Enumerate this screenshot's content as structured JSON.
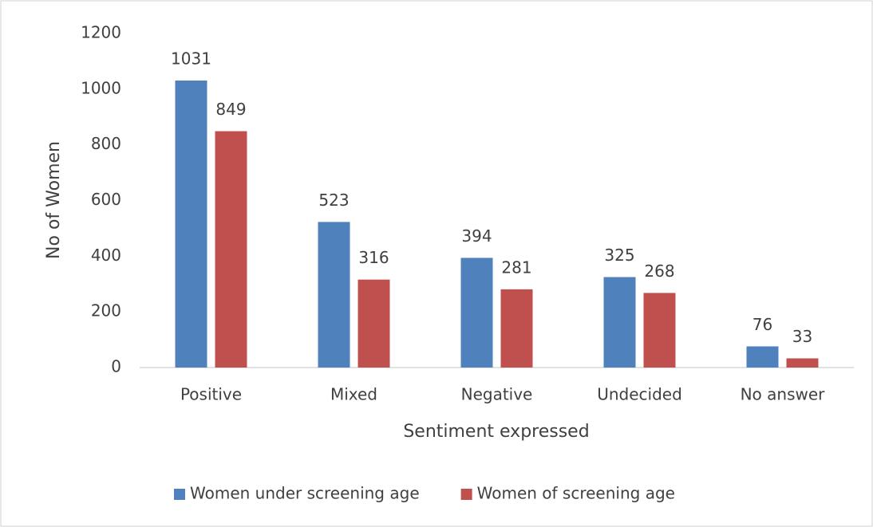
{
  "chart_data": {
    "type": "bar",
    "x_label": "Sentiment expressed",
    "y_label": "No of Women",
    "categories": [
      "Positive",
      "Mixed",
      "Negative",
      "Undecided",
      "No answer"
    ],
    "series": [
      {
        "name": "Women under screening age",
        "color": "#4f81bd",
        "values": [
          1031,
          523,
          394,
          325,
          76
        ]
      },
      {
        "name": "Women of screening age",
        "color": "#c0504d",
        "values": [
          849,
          316,
          281,
          268,
          33
        ]
      }
    ],
    "ylim": [
      0,
      1200
    ],
    "yticks": [
      0,
      200,
      400,
      600,
      800,
      1000,
      1200
    ],
    "grid": false,
    "legend": "bottom",
    "data_labels": true
  }
}
